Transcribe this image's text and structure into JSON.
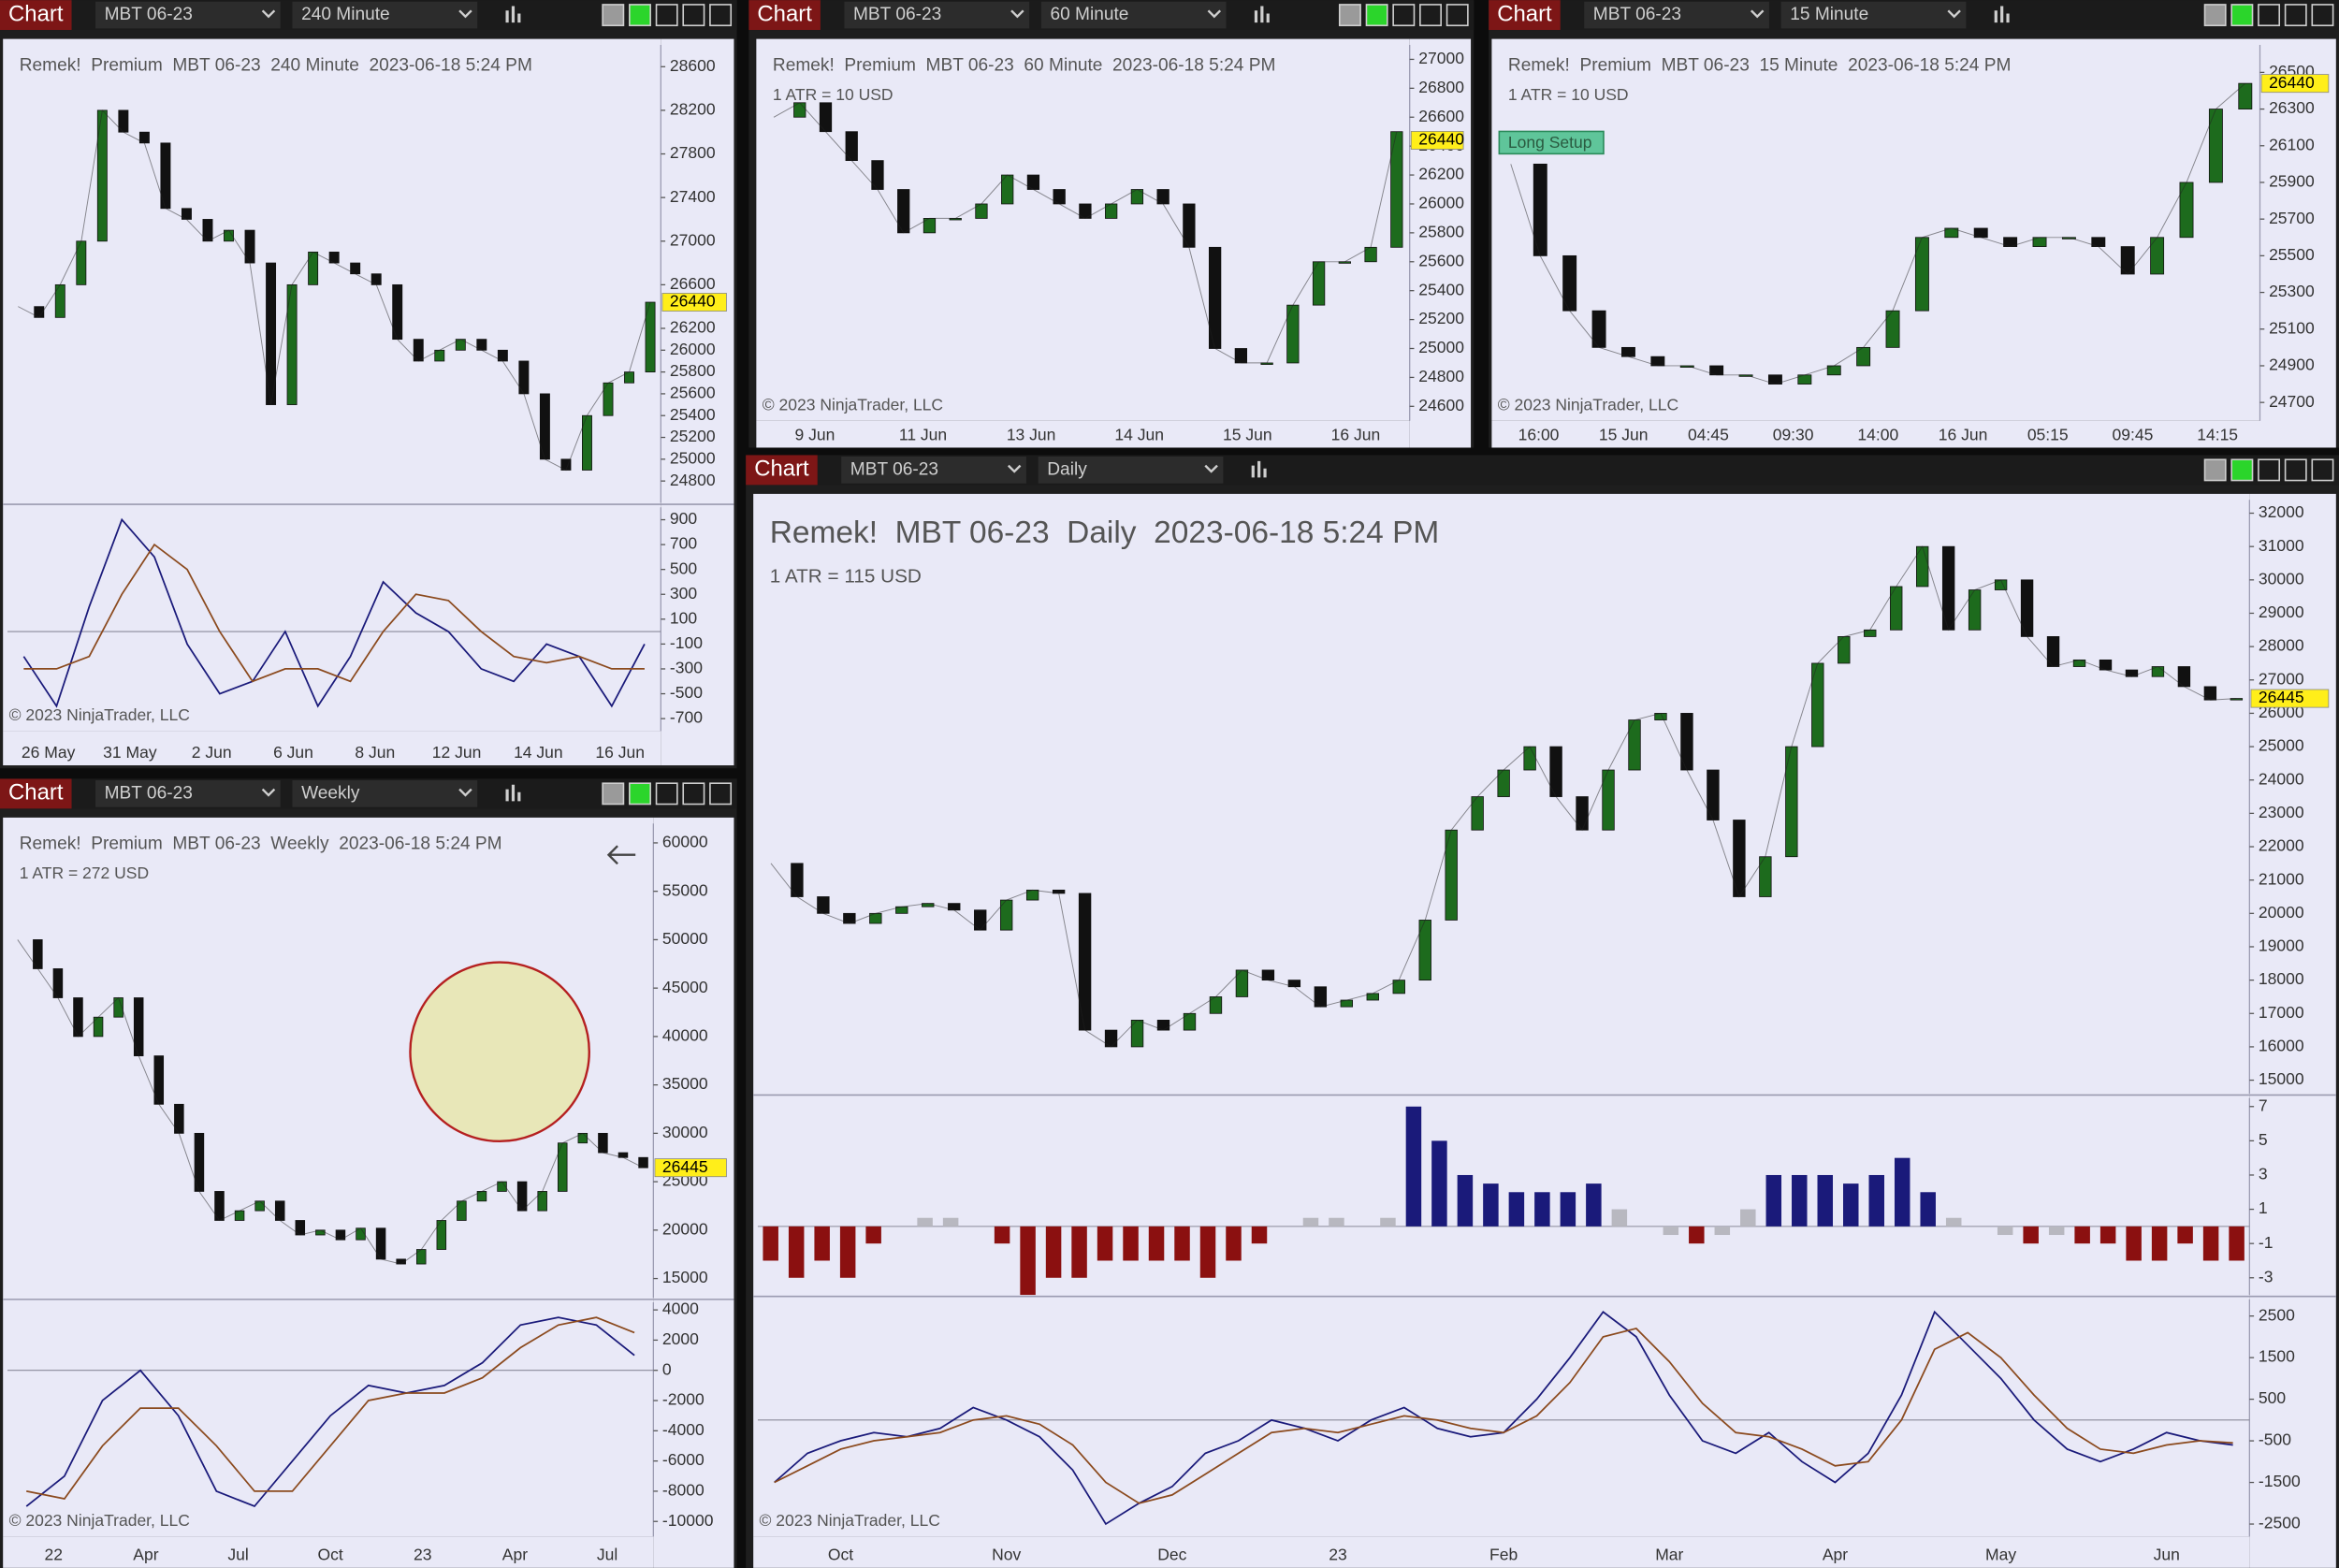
{
  "windows": [
    {
      "bar": {
        "label": "Chart",
        "instrument": "MBT 06-23",
        "interval": "240 Minute"
      },
      "header": "Remek!  Premium  MBT 06-23  240 Minute  2023-06-18 5:24 PM",
      "copyright": "© 2023 NinjaTrader, LLC",
      "price_tag": 26440,
      "xlabels": [
        "26 May",
        "31 May",
        "2 Jun",
        "6 Jun",
        "8 Jun",
        "12 Jun",
        "14 Jun",
        "16 Jun"
      ],
      "panels": [
        {
          "type": "line",
          "ylim": [
            24600,
            28800
          ],
          "yticks": [
            28600,
            28200,
            27800,
            27400,
            27000,
            26600,
            26200,
            26000,
            25800,
            25600,
            25400,
            25200,
            25000,
            24800
          ],
          "series": [
            {
              "color": "#222222",
              "values": [
                26400,
                26300,
                26600,
                27000,
                28200,
                28000,
                27900,
                27300,
                27200,
                27000,
                27100,
                26800,
                25500,
                26600,
                26900,
                26800,
                26700,
                26600,
                26100,
                25900,
                26000,
                26100,
                26000,
                25900,
                25600,
                25000,
                24900,
                25400,
                25700,
                25800,
                26440
              ]
            }
          ]
        },
        {
          "type": "line",
          "ylim": [
            -800,
            1000
          ],
          "yticks": [
            900,
            700,
            500,
            300,
            100,
            -100,
            -300,
            -500,
            -700
          ],
          "series": [
            {
              "color": "#1a1a7a",
              "values": [
                -200,
                -600,
                200,
                900,
                600,
                -100,
                -500,
                -400,
                0,
                -600,
                -200,
                400,
                150,
                0,
                -300,
                -400,
                -100,
                -200,
                -600,
                -100
              ]
            },
            {
              "color": "#8b4a1e",
              "values": [
                -300,
                -300,
                -200,
                300,
                700,
                500,
                0,
                -400,
                -300,
                -300,
                -400,
                0,
                300,
                250,
                0,
                -200,
                -250,
                -200,
                -300,
                -300
              ]
            }
          ]
        }
      ]
    },
    {
      "bar": {
        "label": "Chart",
        "instrument": "MBT 06-23",
        "interval": "60 Minute"
      },
      "header": "Remek!  Premium  MBT 06-23  60 Minute  2023-06-18 5:24 PM",
      "atr": "1 ATR = 10 USD",
      "copyright": "© 2023 NinjaTrader, LLC",
      "price_tag": 26440,
      "xlabels": [
        "9 Jun",
        "11 Jun",
        "13 Jun",
        "14 Jun",
        "15 Jun",
        "16 Jun"
      ],
      "panels": [
        {
          "type": "line",
          "ylim": [
            24500,
            27100
          ],
          "yticks": [
            27000,
            26800,
            26600,
            26400,
            26200,
            26000,
            25800,
            25600,
            25400,
            25200,
            25000,
            24800,
            24600
          ],
          "series": [
            {
              "color": "#222222",
              "values": [
                26600,
                26700,
                26500,
                26300,
                26100,
                25800,
                25900,
                25900,
                26000,
                26200,
                26100,
                26000,
                25900,
                26000,
                26100,
                26000,
                25700,
                25000,
                24900,
                24900,
                25300,
                25600,
                25600,
                25700,
                26500
              ]
            }
          ]
        }
      ]
    },
    {
      "bar": {
        "label": "Chart",
        "instrument": "MBT 06-23",
        "interval": "15 Minute"
      },
      "header": "Remek!  Premium  MBT 06-23  15 Minute  2023-06-18 5:24 PM",
      "atr": "1 ATR = 10 USD",
      "annotation": "Long Setup",
      "copyright": "© 2023 NinjaTrader, LLC",
      "price_tag": 26440,
      "xlabels": [
        "16:00",
        "15 Jun",
        "04:45",
        "09:30",
        "14:00",
        "16 Jun",
        "05:15",
        "09:45",
        "14:15"
      ],
      "panels": [
        {
          "type": "line",
          "ylim": [
            24600,
            26650
          ],
          "yticks": [
            26500,
            26300,
            26100,
            25900,
            25700,
            25500,
            25300,
            25100,
            24900,
            24700
          ],
          "series": [
            {
              "color": "#222222",
              "values": [
                26000,
                25500,
                25200,
                25000,
                24950,
                24900,
                24900,
                24850,
                24850,
                24800,
                24850,
                24900,
                25000,
                25200,
                25600,
                25650,
                25600,
                25550,
                25600,
                25600,
                25550,
                25400,
                25600,
                25900,
                26300,
                26440
              ]
            }
          ]
        }
      ]
    },
    {
      "bar": {
        "label": "Chart",
        "instrument": "MBT 06-23",
        "interval": "Weekly"
      },
      "header": "Remek!  Premium  MBT 06-23  Weekly  2023-06-18 5:24 PM",
      "atr": "1 ATR = 272 USD",
      "copyright": "© 2023 NinjaTrader, LLC",
      "price_tag": 26445,
      "xlabels": [
        "22",
        "Apr",
        "Jul",
        "Oct",
        "23",
        "Apr",
        "Jul"
      ],
      "panels": [
        {
          "type": "line",
          "ylim": [
            13000,
            62000
          ],
          "yticks": [
            60000,
            55000,
            50000,
            45000,
            40000,
            35000,
            30000,
            25000,
            20000,
            15000
          ],
          "series": [
            {
              "color": "#222222",
              "values": [
                50000,
                47000,
                44000,
                40000,
                42000,
                44000,
                38000,
                33000,
                30000,
                24000,
                21000,
                22000,
                23000,
                21000,
                19500,
                20000,
                19000,
                20200,
                17000,
                16500,
                18000,
                21000,
                23000,
                24000,
                25000,
                22000,
                24000,
                29000,
                30000,
                28000,
                27500,
                26445
              ]
            }
          ]
        },
        {
          "type": "line",
          "ylim": [
            -11000,
            4500
          ],
          "yticks": [
            4000,
            2000,
            0,
            -2000,
            -4000,
            -6000,
            -8000,
            -10000
          ],
          "series": [
            {
              "color": "#1a1a7a",
              "values": [
                -9000,
                -7000,
                -2000,
                0,
                -3000,
                -8000,
                -9000,
                -6000,
                -3000,
                -1000,
                -1500,
                -1000,
                500,
                3000,
                3500,
                3000,
                1000
              ]
            },
            {
              "color": "#8b4a1e",
              "values": [
                -8000,
                -8500,
                -5000,
                -2500,
                -2500,
                -5000,
                -8000,
                -8000,
                -5000,
                -2000,
                -1500,
                -1500,
                -500,
                1500,
                3000,
                3500,
                2500
              ]
            }
          ]
        }
      ]
    },
    {
      "bar": {
        "label": "Chart",
        "instrument": "MBT 06-23",
        "interval": "Daily"
      },
      "header": "Remek!  MBT 06-23  Daily  2023-06-18 5:24 PM",
      "atr": "1 ATR = 115 USD",
      "copyright": "© 2023 NinjaTrader, LLC",
      "price_tag": 26445,
      "xlabels": [
        "Oct",
        "Nov",
        "Dec",
        "23",
        "Feb",
        "Mar",
        "Apr",
        "May",
        "Jun"
      ],
      "panels": [
        {
          "type": "line",
          "ylim": [
            14600,
            32400
          ],
          "yticks": [
            32000,
            31000,
            30000,
            29000,
            28000,
            27000,
            26000,
            25000,
            24000,
            23000,
            22000,
            21000,
            20000,
            19000,
            18000,
            17000,
            16000,
            15000
          ],
          "series": [
            {
              "color": "#222222",
              "values": [
                21500,
                20500,
                20000,
                19700,
                20000,
                20200,
                20300,
                20100,
                19500,
                20400,
                20700,
                20600,
                16500,
                16000,
                16800,
                16500,
                17000,
                17500,
                18300,
                18000,
                17800,
                17200,
                17400,
                17600,
                18000,
                19800,
                22500,
                23500,
                24300,
                25000,
                23500,
                22500,
                24300,
                25800,
                26000,
                24300,
                22800,
                20500,
                21700,
                25000,
                27500,
                28300,
                28500,
                29800,
                31000,
                28500,
                29700,
                30000,
                28300,
                27400,
                27600,
                27300,
                27100,
                27400,
                26800,
                26400,
                26445
              ]
            }
          ]
        },
        {
          "type": "histogram",
          "ylim": [
            -4,
            7.5
          ],
          "yticks": [
            7,
            5,
            3,
            1,
            -1,
            -3
          ],
          "series": [
            {
              "color": "#1a1a7a",
              "values": [
                -2,
                -3,
                -2,
                -3,
                -1,
                0,
                0.5,
                0.5,
                0,
                -1,
                -4,
                -3,
                -3,
                -2,
                -2,
                -2,
                -2,
                -3,
                -2,
                -1,
                0,
                0.5,
                0.5,
                0,
                0.5,
                7,
                5,
                3,
                2.5,
                2,
                2,
                2,
                2.5,
                1,
                0,
                -0.5,
                -1,
                -0.5,
                1,
                3,
                3,
                3,
                2.5,
                3,
                4,
                2,
                0.5,
                0,
                -0.5,
                -1,
                -0.5,
                -1,
                -1,
                -2,
                -2,
                -1,
                -2,
                -2
              ]
            }
          ]
        },
        {
          "type": "line",
          "ylim": [
            -2800,
            2900
          ],
          "yticks": [
            2500,
            1500,
            500,
            -500,
            -1500,
            -2500
          ],
          "series": [
            {
              "color": "#1a1a7a",
              "values": [
                -1500,
                -800,
                -500,
                -300,
                -400,
                -200,
                300,
                0,
                -400,
                -1200,
                -2500,
                -2000,
                -1600,
                -800,
                -500,
                0,
                -200,
                -500,
                0,
                300,
                -200,
                -400,
                -300,
                500,
                1500,
                2600,
                2000,
                600,
                -500,
                -800,
                -300,
                -1000,
                -1500,
                -800,
                600,
                2600,
                1800,
                1000,
                0,
                -700,
                -1000,
                -700,
                -300,
                -500,
                -600
              ]
            },
            {
              "color": "#8b4a1e",
              "values": [
                -1500,
                -1100,
                -700,
                -500,
                -400,
                -300,
                0,
                100,
                -100,
                -600,
                -1500,
                -2000,
                -1800,
                -1300,
                -800,
                -300,
                -200,
                -300,
                -100,
                100,
                0,
                -200,
                -300,
                100,
                900,
                2000,
                2200,
                1400,
                400,
                -300,
                -400,
                -700,
                -1100,
                -1000,
                0,
                1700,
                2100,
                1500,
                600,
                -200,
                -700,
                -800,
                -600,
                -500,
                -550
              ]
            }
          ]
        }
      ]
    }
  ]
}
